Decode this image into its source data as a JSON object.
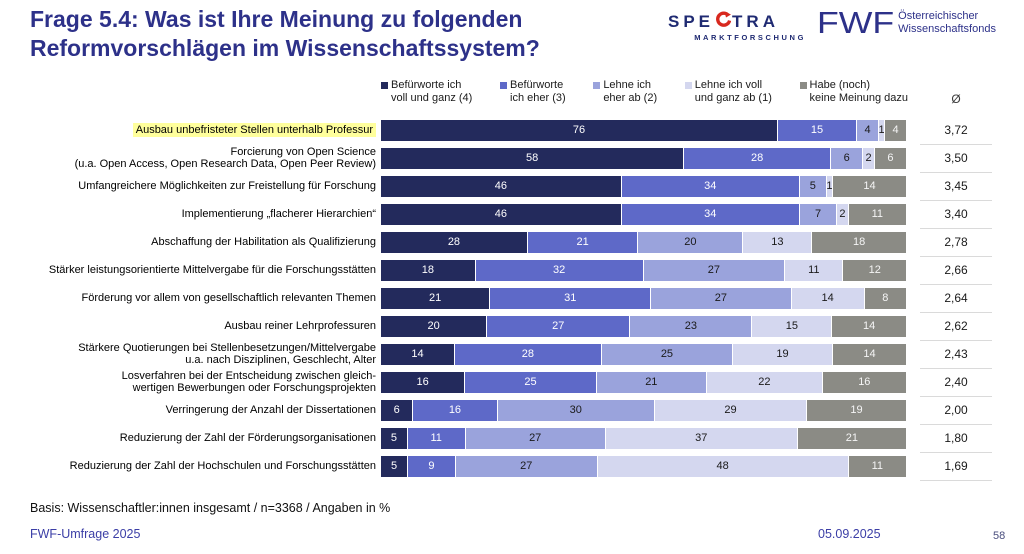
{
  "page": {
    "title_line1": "Frage 5.4: Was ist Ihre Meinung zu folgenden",
    "title_line2": "Reformvorschlägen im Wissenschaftssystem?",
    "basis_note": "Basis: Wissenschaftler:innen insgesamt / n=3368 / Angaben in %",
    "footer_left": "FWF-Umfrage 2025",
    "footer_date": "05.09.2025",
    "page_number": "58"
  },
  "logos": {
    "spectra": {
      "text_left": "SPE",
      "text_right": "TRA",
      "subtext": "MARKTFORSCHUNG",
      "text_color": "#1f2a72",
      "arrow_color": "#d8281e"
    },
    "fwf": {
      "text": "FWF",
      "subtext_line1": "Österreichischer",
      "subtext_line2": "Wissenschaftsfonds",
      "color": "#2d3189"
    }
  },
  "colors": {
    "title": "#2d3189",
    "highlight": "#ffff9c",
    "categories": [
      "#232a5c",
      "#5e69c8",
      "#9aa3dc",
      "#d4d7ef",
      "#8b8b85"
    ],
    "value_text": [
      "#ffffff",
      "#ffffff",
      "#1a1a1a",
      "#1a1a1a",
      "#f5f5f5"
    ],
    "avg_separator": "#dadada"
  },
  "chart_data": {
    "type": "bar",
    "subtype": "stacked-horizontal",
    "unit": "%",
    "xlim": [
      0,
      100
    ],
    "grid": false,
    "legend_position": "top",
    "average_header": "Ø",
    "legend": [
      {
        "line1": "Befürworte ich",
        "line2": "voll und ganz (4)",
        "color": "#232a5c"
      },
      {
        "line1": "Befürworte",
        "line2": "ich eher (3)",
        "color": "#5e69c8"
      },
      {
        "line1": "Lehne ich",
        "line2": "eher ab (2)",
        "color": "#9aa3dc"
      },
      {
        "line1": "Lehne ich voll",
        "line2": "und ganz ab (1)",
        "color": "#d4d7ef"
      },
      {
        "line1": "Habe (noch)",
        "line2": "keine Meinung dazu",
        "color": "#8b8b85"
      }
    ],
    "rows": [
      {
        "label": [
          "Ausbau unbefristeter Stellen unterhalb Professur"
        ],
        "highlight": true,
        "values": [
          76,
          15,
          4,
          1,
          4
        ],
        "avg": "3,72"
      },
      {
        "label": [
          "Forcierung von Open Science",
          "(u.a. Open Access, Open Research Data, Open Peer Review)"
        ],
        "highlight": false,
        "values": [
          58,
          28,
          6,
          2,
          6
        ],
        "avg": "3,50"
      },
      {
        "label": [
          "Umfangreichere Möglichkeiten zur Freistellung für Forschung"
        ],
        "highlight": false,
        "values": [
          46,
          34,
          5,
          1,
          14
        ],
        "avg": "3,45"
      },
      {
        "label": [
          "Implementierung „flacherer Hierarchien“"
        ],
        "highlight": false,
        "values": [
          46,
          34,
          7,
          2,
          11
        ],
        "avg": "3,40"
      },
      {
        "label": [
          "Abschaffung der Habilitation als Qualifizierung"
        ],
        "highlight": false,
        "values": [
          28,
          21,
          20,
          13,
          18
        ],
        "avg": "2,78"
      },
      {
        "label": [
          "Stärker leistungsorientierte Mittelvergabe für die Forschungsstätten"
        ],
        "highlight": false,
        "values": [
          18,
          32,
          27,
          11,
          12
        ],
        "avg": "2,66"
      },
      {
        "label": [
          "Förderung vor allem von gesellschaftlich relevanten Themen"
        ],
        "highlight": false,
        "values": [
          21,
          31,
          27,
          14,
          8
        ],
        "avg": "2,64"
      },
      {
        "label": [
          "Ausbau reiner Lehrprofessuren"
        ],
        "highlight": false,
        "values": [
          20,
          27,
          23,
          15,
          14
        ],
        "avg": "2,62"
      },
      {
        "label": [
          "Stärkere Quotierungen bei Stellenbesetzungen/Mittelvergabe",
          "u.a. nach Disziplinen, Geschlecht, Alter"
        ],
        "highlight": false,
        "values": [
          14,
          28,
          25,
          19,
          14
        ],
        "avg": "2,43"
      },
      {
        "label": [
          "Losverfahren bei der Entscheidung zwischen gleich-",
          "wertigen Bewerbungen oder Forschungsprojekten"
        ],
        "highlight": false,
        "values": [
          16,
          25,
          21,
          22,
          16
        ],
        "avg": "2,40"
      },
      {
        "label": [
          "Verringerung der Anzahl der Dissertationen"
        ],
        "highlight": false,
        "values": [
          6,
          16,
          30,
          29,
          19
        ],
        "avg": "2,00"
      },
      {
        "label": [
          "Reduzierung der Zahl der Förderungsorganisationen"
        ],
        "highlight": false,
        "values": [
          5,
          11,
          27,
          37,
          21
        ],
        "avg": "1,80"
      },
      {
        "label": [
          "Reduzierung der Zahl der Hochschulen und Forschungsstätten"
        ],
        "highlight": false,
        "values": [
          5,
          9,
          27,
          48,
          11
        ],
        "avg": "1,69"
      }
    ]
  }
}
